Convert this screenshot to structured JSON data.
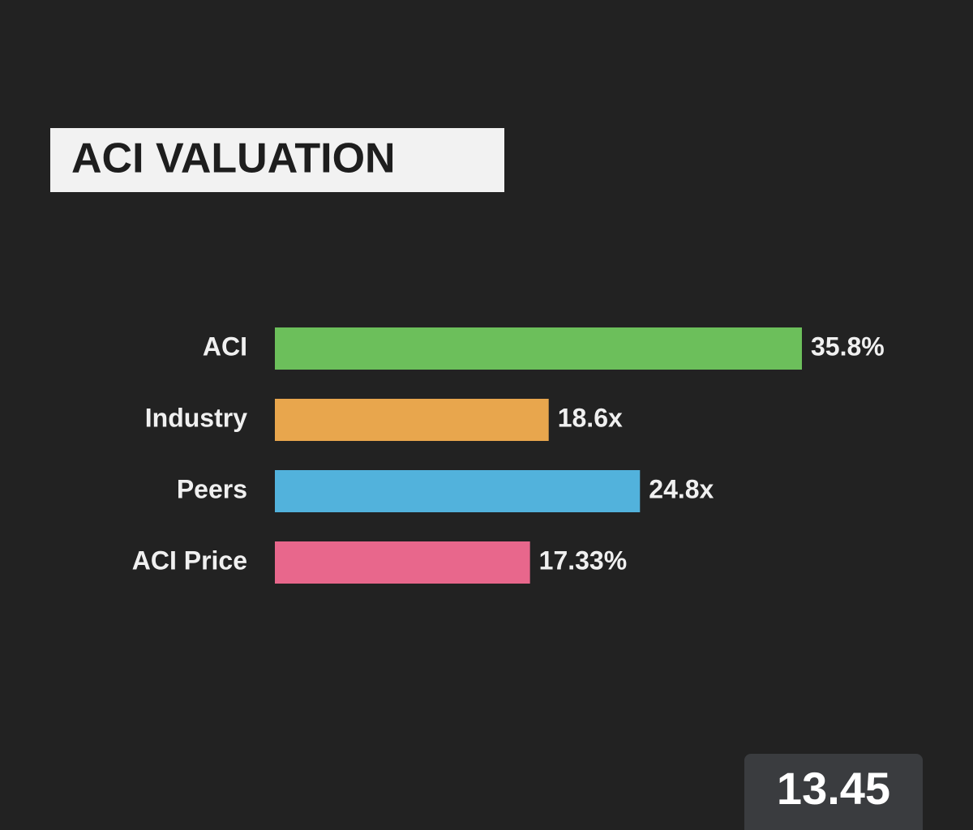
{
  "chart_data": {
    "type": "barh",
    "title": "ACI VALUATION",
    "categories": [
      "ACI",
      "Industry",
      "Peers",
      "ACI Price"
    ],
    "values": [
      35.8,
      18.6,
      24.8,
      17.33
    ],
    "value_labels": [
      "35.8%",
      "18.6x",
      "24.8x",
      "17.33%"
    ],
    "colors": [
      "#6cbf5b",
      "#e8a64d",
      "#52b2dc",
      "#e8678c"
    ]
  },
  "price_badge": "13.45"
}
